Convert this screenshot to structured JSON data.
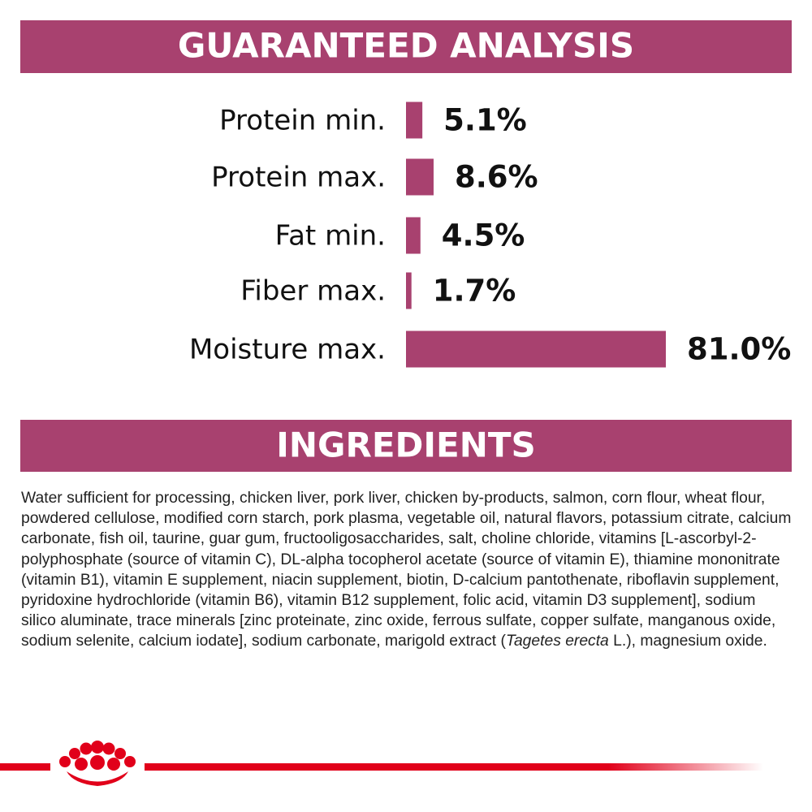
{
  "chart_data": {
    "type": "bar",
    "title": "GUARANTEED ANALYSIS",
    "categories": [
      "Protein min.",
      "Protein max.",
      "Fat min.",
      "Fiber max.",
      "Moisture max."
    ],
    "values": [
      5.1,
      8.6,
      4.5,
      1.7,
      81.0
    ],
    "value_labels": [
      "5.1%",
      "8.6%",
      "4.5%",
      "1.7%",
      "81.0%"
    ],
    "color": "#a8416f"
  },
  "ingredients": {
    "title": "INGREDIENTS",
    "text": [
      "Water sufficient for processing, chicken liver, pork liver, chicken by-products, salmon, corn flour, wheat flour, powdered cellulose, modified corn starch, pork plasma, vegetable oil, natural flavors, potassium citrate, calcium carbonate, fish oil, taurine, guar gum, fructooligosaccharides, salt, choline chloride, vitamins [L-ascorbyl-2-polyphosphate (source of vitamin C), DL-alpha tocopherol acetate (source of vitamin E), thiamine mononitrate (vitamin B1), vitamin E supplement, niacin supplement, biotin, D-calcium pantothenate, riboflavin supplement, pyridoxine hydrochloride (vitamin B6), vitamin B12 supplement, folic acid, vitamin D3 supplement], sodium silico aluminate, trace minerals [zinc proteinate, zinc oxide, ferrous sulfate, copper sulfate, manganous oxide, sodium selenite, calcium iodate], sodium carbonate, marigold extract (",
      "Tagetes erecta",
      " L.), magnesium oxide."
    ]
  }
}
